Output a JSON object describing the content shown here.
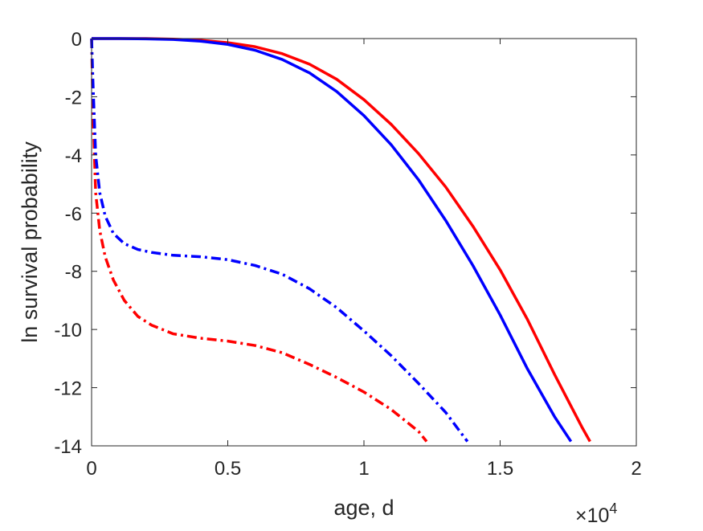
{
  "chart_data": {
    "type": "line",
    "xlabel": "age, d",
    "ylabel": "ln survival probability",
    "x_exponent_label": "×10",
    "x_exponent_power": "4",
    "xlim": [
      0,
      20000
    ],
    "ylim": [
      -14,
      0
    ],
    "xticks": [
      0,
      5000,
      10000,
      15000,
      20000
    ],
    "xtick_labels": [
      "0",
      "0.5",
      "1",
      "1.5",
      "2"
    ],
    "yticks": [
      0,
      -2,
      -4,
      -6,
      -8,
      -10,
      -12,
      -14
    ],
    "ytick_labels": [
      "0",
      "-2",
      "-4",
      "-6",
      "-8",
      "-10",
      "-12",
      "-14"
    ],
    "grid": false,
    "box": true,
    "series": [
      {
        "color": "#ff0000",
        "style": "solid",
        "x": [
          0,
          1000,
          2000,
          3000,
          4000,
          5000,
          6000,
          7000,
          8000,
          9000,
          10000,
          11000,
          12000,
          13000,
          14000,
          15000,
          16000,
          17000,
          18000,
          18300
        ],
        "y": [
          0,
          0,
          0,
          -0.02,
          -0.06,
          -0.14,
          -0.28,
          -0.52,
          -0.88,
          -1.4,
          -2.1,
          -2.95,
          -3.95,
          -5.1,
          -6.45,
          -7.95,
          -9.65,
          -11.55,
          -13.35,
          -13.85
        ]
      },
      {
        "color": "#0000ff",
        "style": "solid",
        "x": [
          0,
          1000,
          2000,
          3000,
          4000,
          5000,
          6000,
          7000,
          8000,
          9000,
          10000,
          11000,
          12000,
          13000,
          14000,
          15000,
          16000,
          17000,
          17600
        ],
        "y": [
          0,
          0,
          -0.01,
          -0.03,
          -0.09,
          -0.2,
          -0.4,
          -0.72,
          -1.18,
          -1.82,
          -2.65,
          -3.65,
          -4.85,
          -6.25,
          -7.8,
          -9.5,
          -11.35,
          -13.0,
          -13.85
        ]
      },
      {
        "color": "#ff0000",
        "style": "dashdot",
        "x": [
          0,
          50,
          150,
          300,
          500,
          800,
          1200,
          1700,
          2200,
          3000,
          4000,
          5000,
          6000,
          7000,
          8000,
          9000,
          10000,
          11000,
          12000,
          12300
        ],
        "y": [
          0,
          -2.5,
          -5.3,
          -6.6,
          -7.5,
          -8.3,
          -9.0,
          -9.55,
          -9.85,
          -10.15,
          -10.3,
          -10.4,
          -10.55,
          -10.8,
          -11.2,
          -11.65,
          -12.15,
          -12.75,
          -13.5,
          -13.85
        ]
      },
      {
        "color": "#0000ff",
        "style": "dashdot",
        "x": [
          0,
          50,
          150,
          300,
          500,
          800,
          1200,
          1700,
          2200,
          3000,
          4000,
          5000,
          6000,
          7000,
          8000,
          9000,
          10000,
          11000,
          12000,
          13000,
          13800
        ],
        "y": [
          0,
          -1.5,
          -4.0,
          -5.3,
          -6.1,
          -6.7,
          -7.05,
          -7.25,
          -7.35,
          -7.45,
          -7.5,
          -7.6,
          -7.8,
          -8.1,
          -8.6,
          -9.25,
          -10.05,
          -10.9,
          -11.85,
          -12.85,
          -13.85
        ]
      }
    ]
  }
}
